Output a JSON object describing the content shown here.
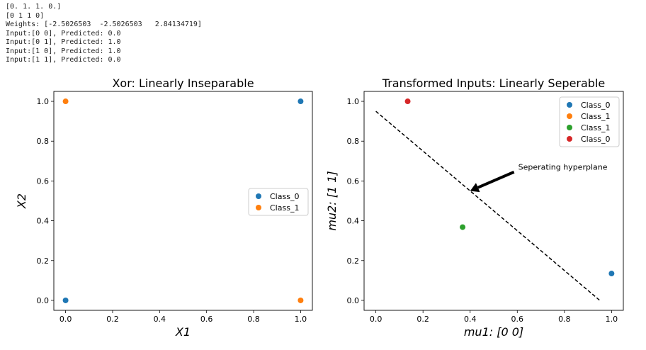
{
  "console_lines": [
    "[0. 1. 1. 0.]",
    "[0 1 1 0]",
    "Weights: [-2.5026503  -2.5026503   2.84134719]",
    "Input:[0 0], Predicted: 0.0",
    "Input:[0 1], Predicted: 1.0",
    "Input:[1 0], Predicted: 1.0",
    "Input:[1 1], Predicted: 0.0"
  ],
  "chart_data": [
    {
      "type": "scatter",
      "title": "Xor: Linearly Inseparable",
      "xlabel": "X1",
      "ylabel": "X2",
      "xlim": [
        -0.05,
        1.05
      ],
      "ylim": [
        -0.05,
        1.05
      ],
      "xticks": [
        "0.0",
        "0.2",
        "0.4",
        "0.6",
        "0.8",
        "1.0"
      ],
      "yticks": [
        "0.0",
        "0.2",
        "0.4",
        "0.6",
        "0.8",
        "1.0"
      ],
      "grid": false,
      "legend_position": "center-right",
      "series": [
        {
          "name": "Class_0",
          "color": "#1f77b4",
          "points": [
            [
              0,
              0
            ],
            [
              1,
              1
            ]
          ]
        },
        {
          "name": "Class_1",
          "color": "#ff7f0e",
          "points": [
            [
              0,
              1
            ],
            [
              1,
              0
            ]
          ]
        }
      ]
    },
    {
      "type": "scatter",
      "title": "Transformed Inputs: Linearly Seperable",
      "xlabel": "mu1: [0 0]",
      "ylabel": "mu2: [1 1]",
      "xlim": [
        -0.05,
        1.05
      ],
      "ylim": [
        -0.05,
        1.05
      ],
      "xticks": [
        "0.0",
        "0.2",
        "0.4",
        "0.6",
        "0.8",
        "1.0"
      ],
      "yticks": [
        "0.0",
        "0.2",
        "0.4",
        "0.6",
        "0.8",
        "1.0"
      ],
      "grid": false,
      "legend_position": "top-right",
      "series": [
        {
          "name": "Class_0",
          "color": "#1f77b4",
          "points": [
            [
              1.0,
              0.135
            ]
          ]
        },
        {
          "name": "Class_1",
          "color": "#ff7f0e",
          "points": []
        },
        {
          "name": "Class_1",
          "color": "#2ca02c",
          "points": [
            [
              0.368,
              0.368
            ]
          ]
        },
        {
          "name": "Class_0",
          "color": "#d62728",
          "points": [
            [
              0.135,
              1.0
            ]
          ]
        }
      ],
      "lines": [
        {
          "style": "dashed",
          "color": "#000000",
          "points": [
            [
              0.0,
              0.95
            ],
            [
              0.95,
              0.0
            ]
          ]
        }
      ],
      "annotations": [
        {
          "text": "Seperating hyperplane",
          "xy": [
            0.4,
            0.55
          ],
          "xytext": [
            0.55,
            0.67
          ]
        }
      ]
    }
  ]
}
